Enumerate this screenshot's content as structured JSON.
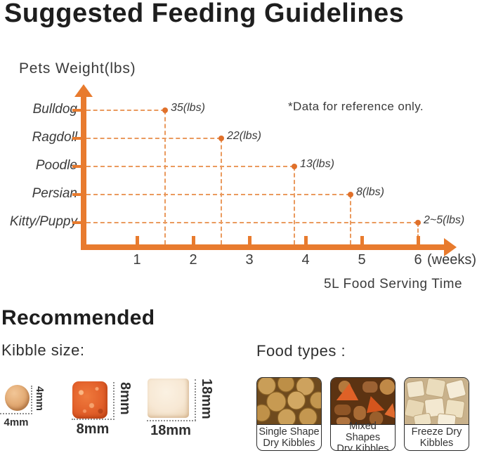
{
  "header": {
    "title": "Suggested Feeding Guidelines"
  },
  "chart_data": {
    "type": "scatter",
    "title": "Suggested Feeding Guidelines",
    "ylabel": "Pets Weight(lbs)",
    "xlabel": "(weeks)",
    "x_caption": "5L Food Serving Time",
    "note": "*Data for reference only.",
    "categories": [
      "Bulldog",
      "Ragdoll",
      "Poodle",
      "Persian",
      "Kitty/Puppy"
    ],
    "x_ticks": [
      "1",
      "2",
      "3",
      "4",
      "5",
      "6"
    ],
    "xlim": [
      0,
      6.6
    ],
    "grid": false,
    "legend": "none",
    "points": [
      {
        "category": "Bulldog",
        "week": 1.5,
        "value_label": "35(lbs)"
      },
      {
        "category": "Ragdoll",
        "week": 2.5,
        "value_label": "22(lbs)"
      },
      {
        "category": "Poodle",
        "week": 3.8,
        "value_label": "13(lbs)"
      },
      {
        "category": "Persian",
        "week": 4.8,
        "value_label": "8(lbs)"
      },
      {
        "category": "Kitty/Puppy",
        "week": 6.0,
        "value_label": "2~5(lbs)"
      }
    ],
    "axis_color": "#e87b2e",
    "dash_color": "#ea9a5e",
    "dot_color": "#e0702a"
  },
  "recommended": {
    "heading": "Recommended",
    "kibble_size_label": "Kibble size:",
    "kibble_sizes": [
      {
        "label": "4mm"
      },
      {
        "label": "8mm"
      },
      {
        "label": "18mm"
      }
    ],
    "food_types_label": "Food types :",
    "food_types": [
      {
        "line1": "Single Shape",
        "line2": "Dry Kibbles"
      },
      {
        "line1": "Mixed Shapes",
        "line2": "Dry Kibbles"
      },
      {
        "line1": "Freeze Dry",
        "line2": "Kibbles"
      }
    ]
  }
}
